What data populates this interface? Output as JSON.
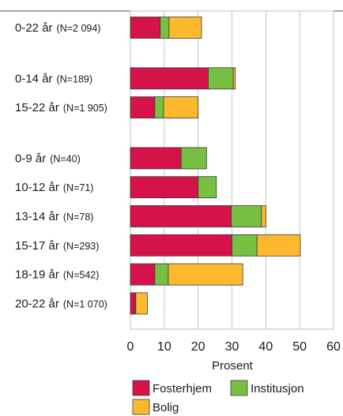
{
  "chart_data": {
    "type": "bar",
    "orientation": "horizontal",
    "stacked": true,
    "categories": [
      {
        "label": "0-22 år",
        "n": "(N=2 094)"
      },
      {
        "label": "0-14 år",
        "n": "(N=189)"
      },
      {
        "label": "15-22 år",
        "n": "(N=1 905)"
      },
      {
        "label": "0-9 år",
        "n": "(N=40)"
      },
      {
        "label": "10-12 år",
        "n": "(N=71)"
      },
      {
        "label": "13-14 år",
        "n": "(N=78)"
      },
      {
        "label": "15-17 år",
        "n": "(N=293)"
      },
      {
        "label": "18-19 år",
        "n": "(N=542)"
      },
      {
        "label": "20-22 år",
        "n": "(N=1 070)"
      }
    ],
    "groups": [
      [
        0
      ],
      [
        1,
        2
      ],
      [
        3,
        4,
        5,
        6,
        7,
        8
      ]
    ],
    "series": [
      {
        "name": "Fosterhjem",
        "color": "#d6124a",
        "values": [
          8.8,
          23.0,
          7.2,
          15.0,
          20.0,
          29.8,
          30.0,
          7.2,
          1.4
        ]
      },
      {
        "name": "Institusjon",
        "color": "#77c043",
        "values": [
          2.6,
          7.4,
          2.6,
          7.5,
          5.4,
          8.9,
          7.4,
          4.0,
          0.2
        ]
      },
      {
        "name": "Bolig",
        "color": "#fdb92d",
        "values": [
          9.6,
          0.6,
          10.2,
          0.0,
          0.0,
          1.3,
          12.8,
          22.0,
          3.4
        ]
      }
    ],
    "xlabel": "Prosent",
    "xlim": [
      0,
      60
    ],
    "xticks": [
      0,
      10,
      20,
      30,
      40,
      50,
      60
    ],
    "grid": true,
    "legend_position": "bottom"
  }
}
